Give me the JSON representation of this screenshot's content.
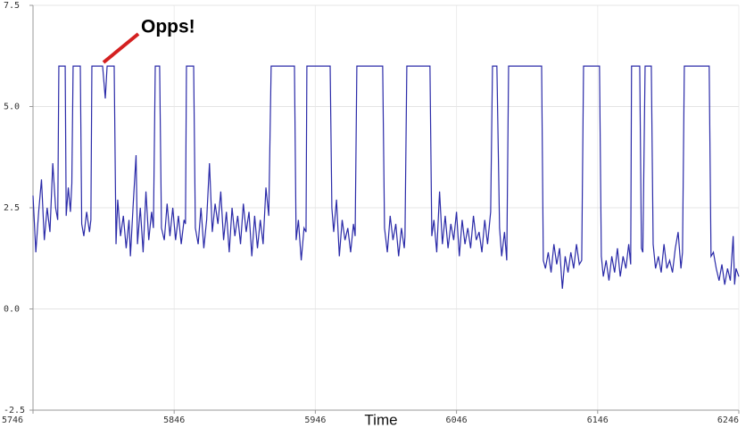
{
  "chart_data": {
    "type": "line",
    "xlabel": "Time",
    "annotation": "Opps!",
    "color": "#2a2aa8",
    "grid": true,
    "xlim": [
      5746,
      6246
    ],
    "xticks": [
      5746,
      5846,
      5946,
      6046,
      6146,
      6246
    ],
    "ylim": [
      -2.5,
      7.5
    ],
    "yticks": [
      -2.5,
      {
        "value": 0,
        "label": "0.0"
      },
      2.5,
      {
        "value": 5,
        "label": "5.0"
      },
      7.5
    ],
    "x": [
      5746,
      5748,
      5750,
      5752,
      5754,
      5756,
      5758,
      5760,
      5762,
      5763.5,
      5764.3,
      5768.8,
      5769.5,
      5771,
      5772.5,
      5773.5,
      5774.4,
      5779.5,
      5780.5,
      5782,
      5784,
      5786,
      5787,
      5787.7,
      5795.3,
      5797.2,
      5798.5,
      5803.5,
      5804.8,
      5806,
      5808,
      5810,
      5812,
      5814,
      5815,
      5817,
      5819,
      5820,
      5822,
      5824,
      5826,
      5828,
      5830,
      5831.3,
      5832.6,
      5835.7,
      5837,
      5839,
      5841,
      5843,
      5845,
      5847,
      5849,
      5851,
      5853,
      5854,
      5854.7,
      5859.8,
      5861,
      5863,
      5865,
      5867,
      5869,
      5871,
      5873,
      5875,
      5877,
      5879,
      5881,
      5883,
      5885,
      5887,
      5889,
      5891,
      5893,
      5895,
      5897,
      5899,
      5901,
      5903,
      5905,
      5907,
      5909,
      5911,
      5913,
      5914.7,
      5931.2,
      5932.4,
      5934,
      5936,
      5938,
      5939.4,
      5940,
      5956.5,
      5957.7,
      5959,
      5961,
      5963,
      5965,
      5967,
      5969,
      5971,
      5973,
      5974.2,
      5975.4,
      5993.7,
      5995,
      5997,
      5999,
      6001,
      6003,
      6005,
      6007,
      6009,
      6009.5,
      6010.8,
      6027.2,
      6028.5,
      6030,
      6032,
      6034,
      6036,
      6038,
      6040,
      6042,
      6044,
      6046,
      6048,
      6050,
      6052,
      6054,
      6056,
      6058,
      6060,
      6062,
      6064,
      6066,
      6068,
      6070.2,
      6071.5,
      6074.6,
      6076.5,
      6078,
      6080,
      6081.6,
      6082.9,
      6106.3,
      6107.5,
      6109,
      6111,
      6113,
      6115,
      6117,
      6119,
      6121,
      6123,
      6125,
      6127,
      6129,
      6131,
      6133,
      6134.7,
      6136,
      6147.3,
      6148.6,
      6150,
      6152,
      6154,
      6156,
      6158,
      6160,
      6162,
      6164,
      6166,
      6168,
      6169.4,
      6170,
      6175.8,
      6177,
      6178,
      6179.6,
      6184,
      6185.3,
      6187,
      6189,
      6191,
      6193,
      6195,
      6197,
      6199,
      6201,
      6203,
      6205,
      6206.1,
      6207.4,
      6225,
      6226.3,
      6228,
      6230,
      6232,
      6234,
      6236,
      6238,
      6240,
      6242,
      6243,
      6244,
      6246
    ],
    "values": [
      2.8,
      1.4,
      2.4,
      3.2,
      1.7,
      2.5,
      1.9,
      3.6,
      2.5,
      2.2,
      6,
      6,
      2.3,
      3.0,
      2.4,
      3.1,
      6,
      6,
      2.1,
      1.8,
      2.4,
      1.9,
      2.2,
      6,
      6,
      5.2,
      6,
      6,
      1.6,
      2.7,
      1.8,
      2.3,
      1.5,
      2.2,
      1.3,
      2.6,
      3.8,
      1.6,
      2.5,
      1.4,
      2.9,
      1.7,
      2.4,
      2.0,
      6,
      6,
      2.0,
      1.7,
      2.6,
      1.8,
      2.5,
      1.7,
      2.3,
      1.6,
      2.2,
      2.1,
      6,
      6,
      2.0,
      1.6,
      2.5,
      1.5,
      2.2,
      3.6,
      1.9,
      2.6,
      2.1,
      2.9,
      1.7,
      2.4,
      1.4,
      2.5,
      1.8,
      2.3,
      1.6,
      2.6,
      1.9,
      2.4,
      1.3,
      2.3,
      1.5,
      2.2,
      1.6,
      3.0,
      2.3,
      6,
      6,
      1.7,
      2.2,
      1.2,
      2.0,
      1.9,
      6,
      6,
      2.5,
      1.9,
      2.7,
      1.3,
      2.2,
      1.7,
      2.0,
      1.4,
      2.1,
      1.8,
      6,
      6,
      2.0,
      1.4,
      2.3,
      1.7,
      2.1,
      1.3,
      2.0,
      1.5,
      1.8,
      6,
      6,
      1.8,
      2.2,
      1.4,
      2.9,
      1.6,
      2.3,
      1.5,
      2.1,
      1.7,
      2.4,
      1.3,
      2.2,
      1.6,
      2.0,
      1.5,
      2.3,
      1.7,
      1.9,
      1.4,
      2.2,
      1.6,
      2.4,
      6,
      6,
      2.0,
      1.3,
      1.9,
      1.2,
      6,
      6,
      1.2,
      1.0,
      1.4,
      0.9,
      1.6,
      1.1,
      1.5,
      0.5,
      1.3,
      0.9,
      1.4,
      1.0,
      1.6,
      1.1,
      1.2,
      6,
      6,
      1.3,
      0.8,
      1.2,
      0.7,
      1.3,
      0.9,
      1.5,
      0.8,
      1.3,
      1.0,
      1.6,
      1.1,
      6,
      6,
      1.5,
      1.4,
      6,
      6,
      1.6,
      1.0,
      1.3,
      0.9,
      1.6,
      1.0,
      1.2,
      0.9,
      1.5,
      1.9,
      1.0,
      1.4,
      6,
      6,
      1.3,
      1.4,
      1.0,
      0.7,
      1.1,
      0.6,
      1.0,
      0.7,
      1.8,
      0.6,
      1.0,
      0.8
    ]
  }
}
